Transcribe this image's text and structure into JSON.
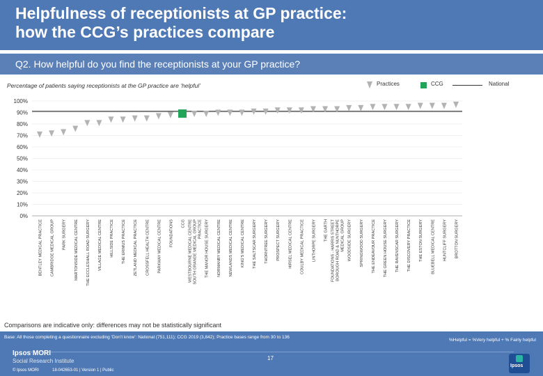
{
  "header": {
    "title_line1": "Helpfulness of receptionists at GP practice:",
    "title_line2": "how the CCG’s practices compare"
  },
  "question": "Q2. How helpful do you find the receptionists at your GP practice?",
  "subtitle": "Percentage of patients saying receptionists at the GP practice are ‘helpful’",
  "legend": {
    "practices": "Practices",
    "ccg": "CCG",
    "national": "National"
  },
  "colors": {
    "practice": "#b3b3b3",
    "ccg": "#21a35a",
    "header": "#4f79b5",
    "national": "#333333"
  },
  "chart_data": {
    "type": "scatter",
    "ylim": [
      0,
      100
    ],
    "yticks": [
      "0%",
      "10%",
      "20%",
      "30%",
      "40%",
      "50%",
      "60%",
      "70%",
      "80%",
      "90%",
      "100%"
    ],
    "categories": [
      [
        "BENTLEY MEDICAL PRACTICE"
      ],
      [
        "CAMBRIDGE MEDICAL GROUP"
      ],
      [
        "PARK SURGERY"
      ],
      [
        "MARTONSIDE MEDICAL CENTRE"
      ],
      [
        "THE ECCLESHALL ROAD SURGERY"
      ],
      [
        "VILLAGE MEDICAL CENTRE"
      ],
      [
        "HILLSIDE PRACTICE"
      ],
      [
        "THE ERIMUS PRACTICE"
      ],
      [
        "ZETLAND MEDICAL PRACTICE"
      ],
      [
        "CROSSFELL HEALTH CENTRE"
      ],
      [
        "PARKWAY MEDICAL CENTRE"
      ],
      [
        "FOUNDATIONS"
      ],
      [
        "CCG"
      ],
      [
        "WESTBOURNE MEDICAL CENTRE",
        "SOUTH GRANGE MEDICAL GROUP",
        "PRACTICE"
      ],
      [
        "THE MANOR HOUSE SURGERY"
      ],
      [
        "NORMANBY MEDICAL CENTRE"
      ],
      [
        "NEWLANDS MEDICAL CENTRE"
      ],
      [
        "KING'S MEDICAL CENTRE"
      ],
      [
        "THE SALTSCAR SURGERY"
      ],
      [
        "THORNTREE SURGERY"
      ],
      [
        "PROSPECT SURGERY"
      ],
      [
        "HIRSEL MEDICAL CENTRE"
      ],
      [
        "COULBY MEDICAL PRACTICE"
      ],
      [
        "LINTHORPE SURGERY"
      ],
      [
        "THE GARTH"
      ],
      [
        "FOUNDATIONS - HARRIS STREET",
        "BOROUGH ROAD & NUNTHORPE",
        "MEDICAL GROUP"
      ],
      [
        "WOODSIDE SURGERY"
      ],
      [
        "SPRINGWOOD SURGERY"
      ],
      [
        "THE ENDEAVOUR PRACTICE"
      ],
      [
        "THE GREEN HOUSE SURGERY"
      ],
      [
        "THE RAVENSCAR SURGERY"
      ],
      [
        "THE DISCOVERY PRACTICE"
      ],
      [
        "THE ESTON SURGERY"
      ],
      [
        "BLUEBELL MEDICAL CENTRE"
      ],
      [
        "HUNTCLIFF SURGERY"
      ],
      [
        "BROTTON SURGERY"
      ]
    ],
    "values": [
      71,
      72,
      73,
      76,
      81,
      81,
      84,
      84,
      85,
      85,
      87,
      88,
      89,
      89,
      89,
      90,
      90,
      90,
      91,
      91,
      92,
      92,
      92,
      93,
      93,
      93,
      94,
      94,
      95,
      95,
      95,
      95,
      96,
      96,
      96,
      97
    ],
    "ccg_index": 12,
    "national": 91
  },
  "note": "Comparisons are indicative only: differences may not be statistically significant",
  "footer": {
    "base": "Base: All those completing a questionnaire excluding ‘Don’t know’: National (751,111); CCG 2019 (3,842); Practice bases range from 30 to 136",
    "formula": "%Helpful = %Very helpful + % Fairly helpful",
    "logo_main": "Ipsos MORI",
    "logo_sub": "Social Research Institute",
    "copyright": "© Ipsos MORI",
    "jobref": "18-042653-01 | Version 1 | Public",
    "page": "17",
    "ipsos": "Ipsos"
  }
}
